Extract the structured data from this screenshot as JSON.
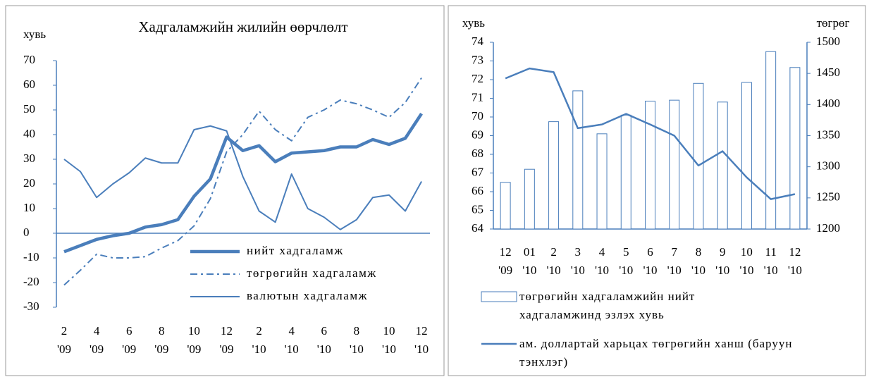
{
  "chart_data": [
    {
      "type": "line",
      "title": "Хадгаламжийн жилийн өөрчлөлт",
      "ylabel": "хувь",
      "categories": [
        "2\n'09",
        null,
        "4\n'09",
        null,
        "6\n'09",
        null,
        "8\n'09",
        null,
        "10\n'09",
        null,
        "12\n'09",
        null,
        "2\n'10",
        null,
        "4\n'10",
        null,
        "6\n'10",
        null,
        "8\n'10",
        null,
        "10\n'10",
        null,
        "12\n'10"
      ],
      "ylim": [
        -30,
        70
      ],
      "yticks": [
        -30,
        -20,
        -10,
        0,
        10,
        20,
        30,
        40,
        50,
        60,
        70
      ],
      "series": [
        {
          "name": "нийт хадгаламж",
          "color": "#4a7ebb",
          "style": "thick",
          "values": [
            -7.5,
            -5,
            -2.5,
            -1,
            0,
            2.5,
            3.5,
            5.5,
            15,
            22,
            39,
            33.5,
            35.5,
            29,
            32.5,
            33,
            33.5,
            35,
            35,
            38,
            36,
            38.5,
            48.5
          ]
        },
        {
          "name": "төгрөгийн хадгаламж",
          "color": "#4a7ebb",
          "style": "dashdot",
          "values": [
            -21,
            -15,
            -8.5,
            -10,
            -10,
            -9.5,
            -6,
            -3,
            3,
            14,
            33,
            40,
            49.5,
            42,
            37.5,
            47,
            50,
            54,
            52.5,
            50,
            47,
            53,
            63
          ]
        },
        {
          "name": "валютын хадгаламж",
          "color": "#4a7ebb",
          "style": "thin",
          "values": [
            30,
            25,
            14.5,
            20,
            24.5,
            30.5,
            28.5,
            28.5,
            42,
            43.5,
            41.5,
            23,
            9,
            4.5,
            24,
            10,
            6.5,
            1.5,
            5.5,
            14.5,
            15.5,
            9,
            21
          ]
        }
      ]
    },
    {
      "type": "bar",
      "ylabel": "хувь",
      "y2label": "төгрөг",
      "categories": [
        "12\n'09",
        "01\n'10",
        "2\n'10",
        "3\n'10",
        "4\n'10",
        "5\n'10",
        "6\n'10",
        "7\n'10",
        "8\n'10",
        "9\n'10",
        "10\n'10",
        "11\n'10",
        "12\n'10"
      ],
      "ylim": [
        64,
        74
      ],
      "yticks": [
        64,
        65,
        66,
        67,
        68,
        69,
        70,
        71,
        72,
        73,
        74
      ],
      "y2lim": [
        1200,
        1500
      ],
      "y2ticks": [
        1200,
        1250,
        1300,
        1350,
        1400,
        1450,
        1500
      ],
      "series": [
        {
          "name": "төгрөгийн хадгаламжийн нийт хадгаламжинд эзлэх хувь",
          "type": "bar",
          "color": "#4a7ebb",
          "values": [
            66.5,
            67.2,
            69.75,
            71.4,
            69.1,
            70.1,
            70.85,
            70.9,
            71.8,
            70.8,
            71.85,
            73.5,
            72.65
          ]
        },
        {
          "name": "ам. доллартай харьцах төгрөгийн ханш (баруун тэнхлэг)",
          "type": "line",
          "axis": "y2",
          "color": "#4a7ebb",
          "values": [
            1442,
            1458,
            1452,
            1362,
            1368,
            1385,
            1368,
            1350,
            1302,
            1325,
            1283,
            1248,
            1256
          ]
        }
      ]
    }
  ]
}
